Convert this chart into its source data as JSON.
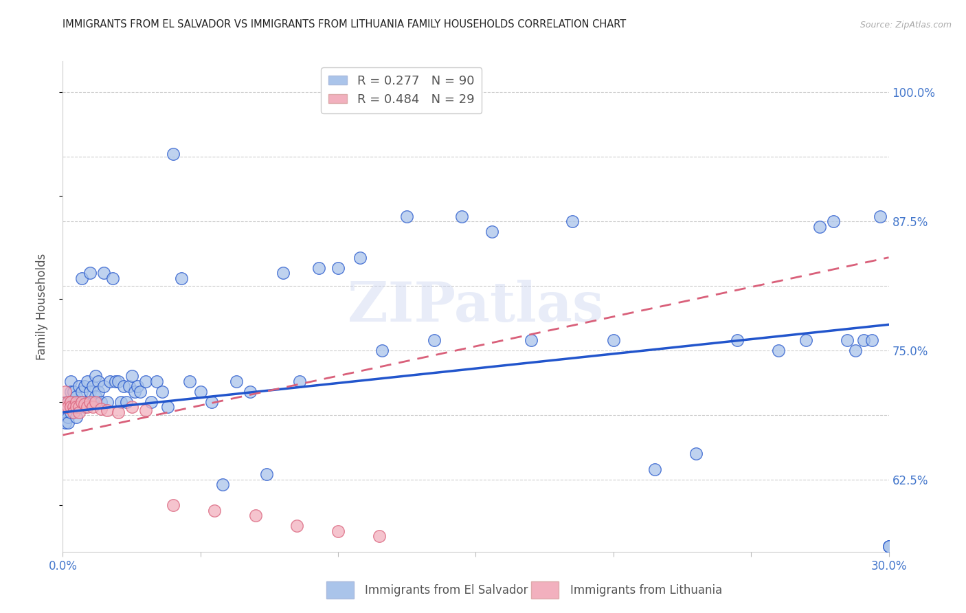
{
  "title": "IMMIGRANTS FROM EL SALVADOR VS IMMIGRANTS FROM LITHUANIA FAMILY HOUSEHOLDS CORRELATION CHART",
  "source": "Source: ZipAtlas.com",
  "ylabel": "Family Households",
  "r_salvador": 0.277,
  "n_salvador": 90,
  "r_lithuania": 0.484,
  "n_lithuania": 29,
  "color_salvador": "#aac4ea",
  "color_lithuania": "#f2b0be",
  "trendline_salvador_color": "#2255cc",
  "trendline_lithuania_color": "#d9607a",
  "watermark": "ZIPatlas",
  "xmin": 0.0,
  "xmax": 0.3,
  "ymin": 0.555,
  "ymax": 1.03,
  "salvador_x": [
    0.001,
    0.001,
    0.001,
    0.002,
    0.002,
    0.002,
    0.003,
    0.003,
    0.003,
    0.003,
    0.004,
    0.004,
    0.004,
    0.005,
    0.005,
    0.005,
    0.006,
    0.006,
    0.007,
    0.007,
    0.007,
    0.008,
    0.008,
    0.009,
    0.009,
    0.01,
    0.01,
    0.011,
    0.011,
    0.012,
    0.012,
    0.013,
    0.013,
    0.014,
    0.015,
    0.015,
    0.016,
    0.017,
    0.018,
    0.019,
    0.02,
    0.021,
    0.022,
    0.023,
    0.024,
    0.025,
    0.026,
    0.027,
    0.028,
    0.03,
    0.032,
    0.034,
    0.036,
    0.038,
    0.04,
    0.043,
    0.046,
    0.05,
    0.054,
    0.058,
    0.063,
    0.068,
    0.074,
    0.08,
    0.086,
    0.093,
    0.1,
    0.108,
    0.116,
    0.125,
    0.135,
    0.145,
    0.156,
    0.17,
    0.185,
    0.2,
    0.215,
    0.23,
    0.245,
    0.26,
    0.27,
    0.275,
    0.28,
    0.285,
    0.288,
    0.291,
    0.294,
    0.297,
    0.3,
    0.3
  ],
  "salvador_y": [
    0.7,
    0.69,
    0.68,
    0.695,
    0.685,
    0.68,
    0.72,
    0.71,
    0.7,
    0.69,
    0.71,
    0.7,
    0.695,
    0.705,
    0.695,
    0.685,
    0.715,
    0.7,
    0.82,
    0.71,
    0.7,
    0.715,
    0.695,
    0.72,
    0.7,
    0.825,
    0.71,
    0.715,
    0.7,
    0.725,
    0.705,
    0.72,
    0.71,
    0.7,
    0.825,
    0.715,
    0.7,
    0.72,
    0.82,
    0.72,
    0.72,
    0.7,
    0.715,
    0.7,
    0.715,
    0.725,
    0.71,
    0.715,
    0.71,
    0.72,
    0.7,
    0.72,
    0.71,
    0.695,
    0.94,
    0.82,
    0.72,
    0.71,
    0.7,
    0.62,
    0.72,
    0.71,
    0.63,
    0.825,
    0.72,
    0.83,
    0.83,
    0.84,
    0.75,
    0.88,
    0.76,
    0.88,
    0.865,
    0.76,
    0.875,
    0.76,
    0.635,
    0.65,
    0.76,
    0.75,
    0.76,
    0.87,
    0.875,
    0.76,
    0.75,
    0.76,
    0.76,
    0.88,
    0.56,
    0.56
  ],
  "lithuania_x": [
    0.001,
    0.001,
    0.002,
    0.002,
    0.003,
    0.003,
    0.004,
    0.004,
    0.005,
    0.005,
    0.006,
    0.006,
    0.007,
    0.008,
    0.009,
    0.01,
    0.011,
    0.012,
    0.014,
    0.016,
    0.02,
    0.025,
    0.03,
    0.04,
    0.055,
    0.07,
    0.085,
    0.1,
    0.115
  ],
  "lithuania_y": [
    0.71,
    0.695,
    0.7,
    0.695,
    0.7,
    0.695,
    0.695,
    0.69,
    0.7,
    0.695,
    0.695,
    0.69,
    0.7,
    0.698,
    0.695,
    0.7,
    0.695,
    0.7,
    0.693,
    0.692,
    0.69,
    0.695,
    0.692,
    0.6,
    0.595,
    0.59,
    0.58,
    0.575,
    0.57
  ],
  "trendline_sal_x0": 0.0,
  "trendline_sal_y0": 0.69,
  "trendline_sal_x1": 0.3,
  "trendline_sal_y1": 0.775,
  "trendline_lit_x0": 0.0,
  "trendline_lit_y0": 0.668,
  "trendline_lit_x1": 0.3,
  "trendline_lit_y1": 0.84
}
